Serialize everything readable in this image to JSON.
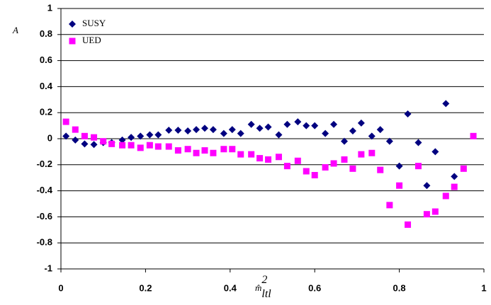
{
  "chart_data": {
    "type": "scatter",
    "y_label": "A",
    "x_label": {
      "base": "m̂",
      "sup": "2",
      "sub": "ltl"
    },
    "xlim": [
      0,
      1
    ],
    "xticks": [
      0,
      0.2,
      0.4,
      0.6,
      0.8,
      1
    ],
    "ylim": [
      -1,
      1
    ],
    "yticks": [
      -1,
      -0.8,
      -0.6,
      -0.4,
      -0.2,
      0,
      0.2,
      0.4,
      0.6,
      0.8,
      1
    ],
    "grid": true,
    "legend": "upper left",
    "series": [
      {
        "name": "SUSY",
        "color": "#000080",
        "marker": "diamond",
        "x": [
          0.012,
          0.034,
          0.056,
          0.078,
          0.1,
          0.12,
          0.145,
          0.166,
          0.188,
          0.21,
          0.23,
          0.255,
          0.277,
          0.3,
          0.32,
          0.34,
          0.36,
          0.385,
          0.405,
          0.425,
          0.45,
          0.47,
          0.49,
          0.515,
          0.535,
          0.56,
          0.58,
          0.6,
          0.625,
          0.645,
          0.67,
          0.69,
          0.71,
          0.735,
          0.755,
          0.777,
          0.8,
          0.82,
          0.845,
          0.865,
          0.885,
          0.91,
          0.93
        ],
        "values": [
          0.02,
          -0.01,
          -0.04,
          -0.045,
          -0.03,
          -0.03,
          -0.01,
          0.01,
          0.02,
          0.03,
          0.03,
          0.065,
          0.065,
          0.06,
          0.07,
          0.08,
          0.07,
          0.04,
          0.07,
          0.04,
          0.11,
          0.08,
          0.09,
          0.03,
          0.11,
          0.13,
          0.1,
          0.1,
          0.04,
          0.11,
          -0.02,
          0.06,
          0.12,
          0.02,
          0.07,
          -0.02,
          -0.21,
          0.19,
          -0.03,
          -0.36,
          -0.1,
          0.27,
          -0.29
        ]
      },
      {
        "name": "UED",
        "color": "#ff00ff",
        "marker": "square",
        "x": [
          0.012,
          0.034,
          0.056,
          0.078,
          0.1,
          0.12,
          0.145,
          0.166,
          0.188,
          0.21,
          0.23,
          0.255,
          0.277,
          0.3,
          0.32,
          0.34,
          0.36,
          0.385,
          0.405,
          0.425,
          0.45,
          0.47,
          0.49,
          0.515,
          0.535,
          0.56,
          0.58,
          0.6,
          0.625,
          0.645,
          0.67,
          0.69,
          0.71,
          0.735,
          0.755,
          0.777,
          0.8,
          0.82,
          0.845,
          0.865,
          0.885,
          0.91,
          0.93,
          0.952,
          0.975
        ],
        "values": [
          0.13,
          0.07,
          0.02,
          0.01,
          -0.02,
          -0.04,
          -0.05,
          -0.05,
          -0.07,
          -0.05,
          -0.06,
          -0.06,
          -0.09,
          -0.08,
          -0.11,
          -0.09,
          -0.11,
          -0.08,
          -0.08,
          -0.12,
          -0.12,
          -0.15,
          -0.16,
          -0.14,
          -0.21,
          -0.17,
          -0.25,
          -0.28,
          -0.22,
          -0.19,
          -0.16,
          -0.23,
          -0.12,
          -0.11,
          -0.24,
          -0.51,
          -0.36,
          -0.66,
          -0.21,
          -0.58,
          -0.56,
          -0.44,
          -0.37,
          -0.23,
          0.02
        ]
      }
    ]
  }
}
